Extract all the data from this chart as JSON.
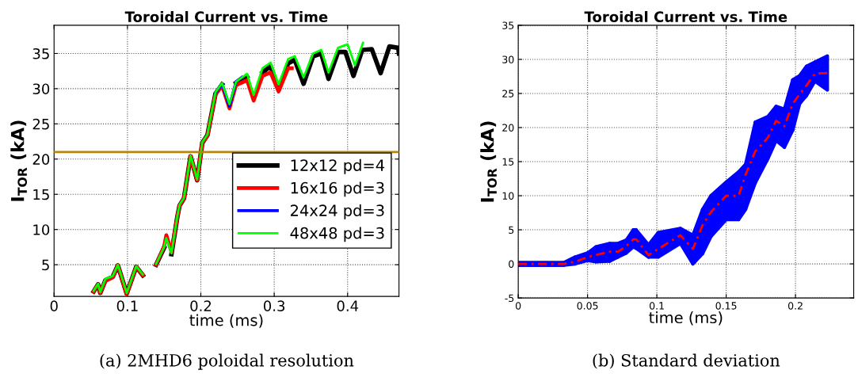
{
  "chart_data": [
    {
      "type": "line",
      "title": "Toroidal Current vs. Time",
      "xlabel": "time (ms)",
      "ylabel": "I$_{TOR}$ (kA)",
      "xlim": [
        0,
        0.47
      ],
      "ylim": [
        0.5,
        39
      ],
      "xticks": [
        0,
        0.1,
        0.2,
        0.3,
        0.4
      ],
      "yticks": [
        5,
        10,
        15,
        20,
        25,
        30,
        35
      ],
      "grid": true,
      "legend": "lower right",
      "line_style": "solid",
      "ref_lines": [
        {
          "axis": "y",
          "value": 21,
          "color": "#b8860b"
        }
      ],
      "annotations": [
        "(a) 2MHD6 poloidal resolution"
      ],
      "series": [
        {
          "name": "12x12 pd=4",
          "color": "#000000",
          "x": [
            0.054,
            0.06,
            0.063,
            0.07,
            0.08,
            0.087,
            0.099,
            0.112,
            0.121,
            0.13,
            0.133,
            0.139,
            0.15,
            0.153,
            0.16,
            0.168,
            0.171,
            0.177,
            0.186,
            0.195,
            0.202,
            0.209,
            0.22,
            0.229,
            0.239,
            0.248,
            0.263,
            0.272,
            0.284,
            0.295,
            0.306,
            0.319,
            0.328,
            0.34,
            0.353,
            0.364,
            0.374,
            0.387,
            0.397,
            0.408,
            0.42,
            0.433,
            0.445,
            0.457,
            0.469,
            0.47
          ],
          "values": [
            1.2,
            2.2,
            1.0,
            2.8,
            3.3,
            4.9,
            0.9,
            4.7,
            3.5,
            null,
            null,
            5.0,
            7.4,
            null,
            6.5,
            11.8,
            13.4,
            14.4,
            20.4,
            17.0,
            22.3,
            23.4,
            29.3,
            30.6,
            null,
            30.8,
            31.7,
            null,
            32.3,
            33.2,
            29.8,
            33.6,
            34.1,
            30.7,
            34.6,
            35.0,
            31.4,
            35.2,
            35.2,
            31.8,
            35.5,
            35.6,
            32.2,
            36.0,
            35.8,
            35.0
          ]
        },
        {
          "name": "16x16 pd=3",
          "color": "#ff0000",
          "x": [
            0.054,
            0.06,
            0.063,
            0.07,
            0.08,
            0.087,
            0.099,
            0.112,
            0.121,
            0.13,
            0.133,
            0.139,
            0.15,
            0.153,
            0.16,
            0.168,
            0.171,
            0.177,
            0.186,
            0.195,
            0.202,
            0.209,
            0.22,
            0.229,
            0.239,
            0.248,
            0.263,
            0.272,
            0.284,
            0.295,
            0.306,
            0.319,
            0.324
          ],
          "values": [
            1.2,
            2.2,
            1.0,
            2.7,
            3.2,
            4.9,
            0.8,
            4.7,
            3.5,
            null,
            null,
            5.0,
            7.6,
            9.2,
            6.8,
            11.8,
            13.4,
            14.4,
            20.4,
            17.0,
            22.3,
            23.3,
            29.2,
            30.4,
            27.2,
            30.5,
            31.2,
            28.3,
            31.8,
            32.3,
            29.6,
            32.9,
            32.9
          ]
        },
        {
          "name": "24x24 pd=3",
          "color": "#0000ff",
          "x": [
            0.22,
            0.229,
            0.239,
            0.248,
            0.256
          ],
          "values": [
            29.4,
            30.7,
            27.5,
            31.0,
            31.6
          ]
        },
        {
          "name": "48x48 pd=3",
          "color": "#00ff00",
          "x": [
            0.054,
            0.06,
            0.063,
            0.07,
            0.08,
            0.087,
            0.099,
            0.112,
            0.121,
            0.13,
            0.133,
            0.139,
            0.15,
            0.153,
            0.16,
            0.168,
            0.171,
            0.177,
            0.186,
            0.195,
            0.202,
            0.209,
            0.22,
            0.229,
            0.239,
            0.248,
            0.263,
            0.272,
            0.284,
            0.295,
            0.306,
            0.319,
            0.328,
            0.34,
            0.353,
            0.364,
            0.374,
            0.387,
            0.4,
            0.41,
            0.421
          ],
          "values": [
            1.3,
            2.3,
            1.1,
            3.0,
            3.4,
            5.0,
            1.0,
            4.8,
            3.6,
            null,
            null,
            5.1,
            7.5,
            8.8,
            6.6,
            11.9,
            13.5,
            14.5,
            20.5,
            17.1,
            22.4,
            23.5,
            29.5,
            30.8,
            27.8,
            31.0,
            32.1,
            29.1,
            32.9,
            33.7,
            30.6,
            34.2,
            34.6,
            31.6,
            35.0,
            35.5,
            32.3,
            35.8,
            36.3,
            33.3,
            36.5
          ]
        }
      ]
    },
    {
      "type": "line",
      "title": "Toroidal Current vs. Time",
      "xlabel": "time (ms)",
      "ylabel": "I$_{TOR}$ (kA)",
      "xlim": [
        0,
        0.242
      ],
      "ylim": [
        -5,
        35
      ],
      "xticks": [
        0,
        0.05,
        0.1,
        0.15,
        0.2
      ],
      "yticks": [
        -5,
        0,
        5,
        10,
        15,
        20,
        25,
        30,
        35
      ],
      "grid": true,
      "line_style": "dashed",
      "annotations": [
        "(b) Standard deviation"
      ],
      "series": [
        {
          "type": "line",
          "color": "#ff0000",
          "colors": [
            "#0000ff",
            "#0000ff",
            "#0000ff",
            "#0000ff",
            "#0000ff",
            "#0000ff",
            "#0000ff",
            "#0000ff",
            "#0000ff",
            "#0000ff",
            "#0000ff",
            "#0000ff",
            "#0000ff",
            "#0000ff",
            "#0000ff",
            "#0000ff",
            "#0000ff",
            "#0000ff",
            "#0000ff",
            "#0000ff",
            "#0000ff",
            "#0000ff",
            "#0000ff",
            "#0000ff",
            "#0000ff",
            "#0000ff",
            "#0000ff",
            "#0000ff"
          ],
          "x": [
            0,
            0.033,
            0.041,
            0.05,
            0.056,
            0.066,
            0.072,
            0.078,
            0.083,
            0.085,
            0.094,
            0.101,
            0.117,
            0.126,
            0.133,
            0.139,
            0.15,
            0.159,
            0.164,
            0.171,
            0.18,
            0.186,
            0.192,
            0.198,
            0.203,
            0.208,
            0.214,
            0.223
          ],
          "upper": [
            0.2,
            0.2,
            1.0,
            1.6,
            2.5,
            3.0,
            3.0,
            3.5,
            5.0,
            5.0,
            2.8,
            4.6,
            5.2,
            4.2,
            8.0,
            10.0,
            12.0,
            13.5,
            14.6,
            20.8,
            21.6,
            23.1,
            22.7,
            27.0,
            27.6,
            29.0,
            29.6,
            30.5
          ],
          "lower": [
            -0.2,
            -0.2,
            0.0,
            0.5,
            0.3,
            0.4,
            1.0,
            1.6,
            2.5,
            2.3,
            1.0,
            1.0,
            3.0,
            0.0,
            1.5,
            4.0,
            6.5,
            6.5,
            8.0,
            11.9,
            15.4,
            18.1,
            17.1,
            19.6,
            23.5,
            24.7,
            26.8,
            25.5
          ],
          "values": [
            0,
            0,
            0.3,
            1.0,
            1.3,
            1.8,
            1.8,
            2.6,
            3.6,
            3.6,
            1.3,
            2.2,
            4.2,
            2.2,
            5.7,
            7.6,
            10.0,
            10.0,
            13.1,
            16.5,
            18.5,
            21.0,
            20.2,
            23.5,
            24.9,
            26.2,
            27.9,
            28.0
          ]
        }
      ]
    }
  ]
}
